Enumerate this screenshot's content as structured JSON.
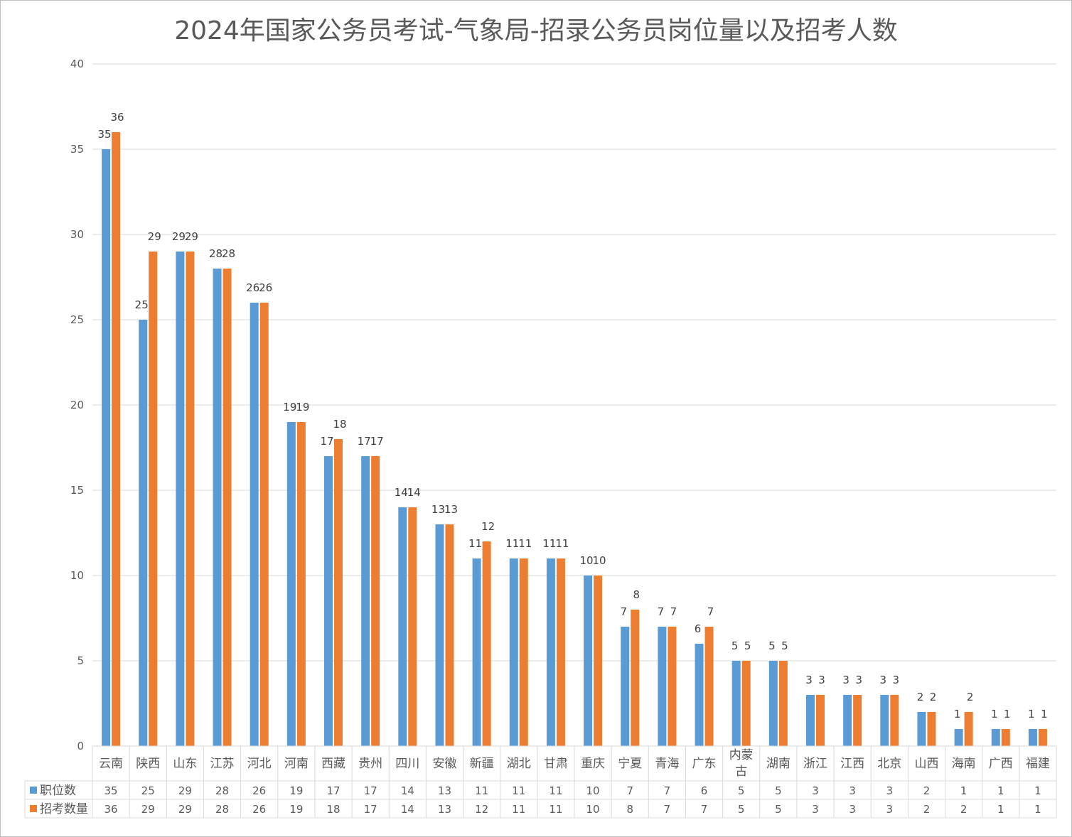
{
  "chart_data": {
    "type": "bar",
    "title": "2024年国家公务员考试-气象局-招录公务员岗位量以及招考人数",
    "xlabel": "",
    "ylabel": "",
    "ylim": [
      0,
      40
    ],
    "yticks": [
      "0",
      "5",
      "10",
      "15",
      "20",
      "25",
      "30",
      "35",
      "40"
    ],
    "grid": true,
    "legend": "bottom-left data table",
    "categories": [
      "云南",
      "陕西",
      "山东",
      "江苏",
      "河北",
      "河南",
      "西藏",
      "贵州",
      "四川",
      "安徽",
      "新疆",
      "湖北",
      "甘肃",
      "重庆",
      "宁夏",
      "青海",
      "广东",
      "内蒙古",
      "湖南",
      "浙江",
      "江西",
      "北京",
      "山西",
      "海南",
      "广西",
      "福建"
    ],
    "series": [
      {
        "name": "职位数",
        "color": "#5b9bd5",
        "values": [
          35,
          25,
          29,
          28,
          26,
          19,
          17,
          17,
          14,
          13,
          11,
          11,
          11,
          10,
          7,
          7,
          6,
          5,
          5,
          3,
          3,
          3,
          2,
          1,
          1,
          1
        ]
      },
      {
        "name": "招考数量",
        "color": "#ed7d31",
        "values": [
          36,
          29,
          29,
          28,
          26,
          19,
          18,
          17,
          14,
          13,
          12,
          11,
          11,
          10,
          8,
          7,
          7,
          5,
          5,
          3,
          3,
          3,
          2,
          2,
          1,
          1
        ]
      }
    ]
  }
}
